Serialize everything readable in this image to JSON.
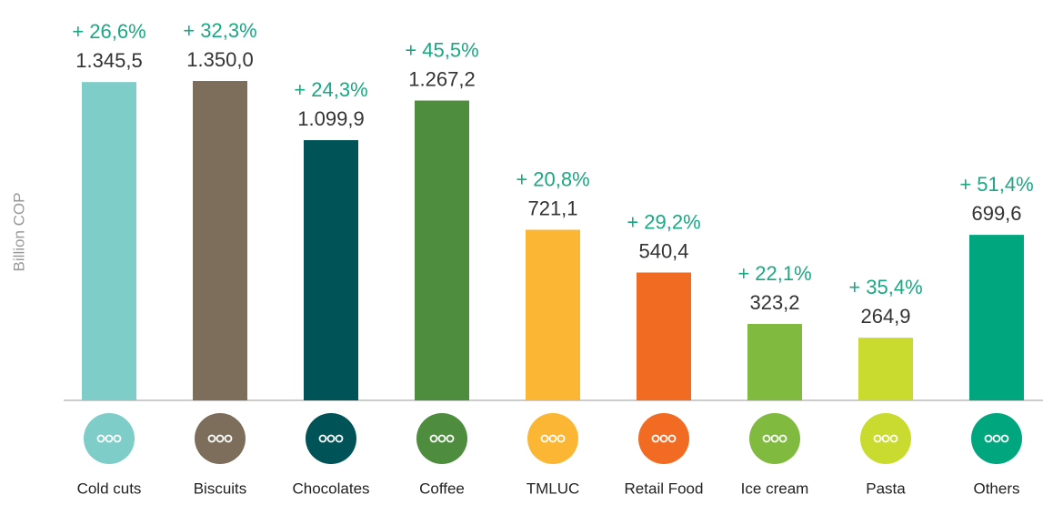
{
  "chart_data": {
    "type": "bar",
    "y_label": "Billion COP",
    "categories": [
      "Cold cuts",
      "Biscuits",
      "Chocolates",
      "Coffee",
      "TMLUC",
      "Retail Food",
      "Ice cream",
      "Pasta",
      "Others"
    ],
    "values": [
      1345.5,
      1350.0,
      1099.9,
      1267.2,
      721.1,
      540.4,
      323.2,
      264.9,
      699.6
    ],
    "value_labels": [
      "1.345,5",
      "1.350,0",
      "1.099,9",
      "1.267,2",
      "721,1",
      "540,4",
      "323,2",
      "264,9",
      "699,6"
    ],
    "annotations": [
      "+ 26,6%",
      "+ 32,3%",
      "+ 24,3%",
      "+ 45,5%",
      "+ 20,8%",
      "+ 29,2%",
      "+ 22,1%",
      "+ 35,4%",
      "+ 51,4%"
    ],
    "colors": [
      "#7ecdc8",
      "#7d6e5c",
      "#005356",
      "#4e8c3e",
      "#fbb733",
      "#f26b23",
      "#80ba3f",
      "#c9db2e",
      "#00a77e"
    ]
  }
}
